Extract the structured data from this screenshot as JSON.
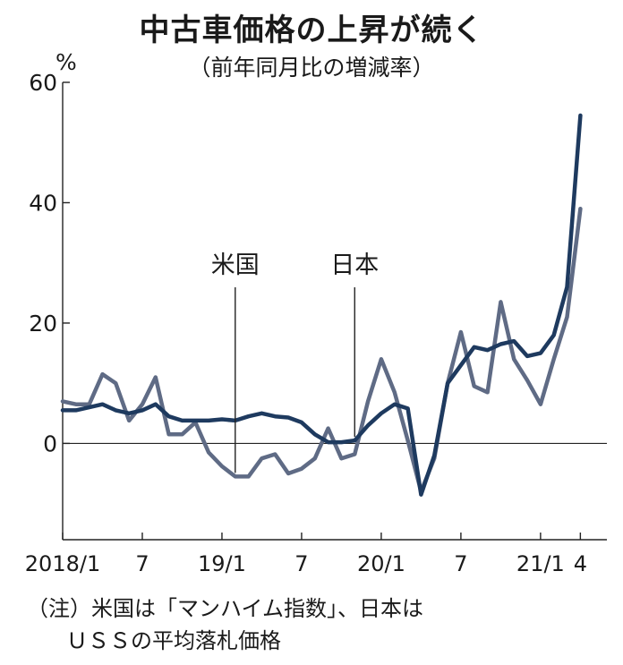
{
  "title": "中古車価格の上昇が続く",
  "subtitle": "（前年同月比の増減率）",
  "note_line1": "（注）米国は「マンハイム指数」、日本は",
  "note_line2": "ＵＳＳの平均落札価格",
  "chart_data": {
    "type": "line",
    "ylabel": "%",
    "ylim": [
      -16,
      60
    ],
    "yticks": [
      0,
      20,
      40,
      60
    ],
    "x_tick_labels": [
      {
        "label": "2018/1",
        "index": 0
      },
      {
        "label": "7",
        "index": 6
      },
      {
        "label": "19/1",
        "index": 12
      },
      {
        "label": "7",
        "index": 18
      },
      {
        "label": "20/1",
        "index": 24
      },
      {
        "label": "7",
        "index": 30
      },
      {
        "label": "21/1",
        "index": 36
      },
      {
        "label": "4",
        "index": 39
      }
    ],
    "series": [
      {
        "name": "米国",
        "color": "#5f6b85",
        "label_index": 13,
        "values": [
          7,
          6.5,
          6.5,
          11.5,
          10,
          3.8,
          6.5,
          11,
          1.5,
          1.5,
          3.5,
          -1.5,
          -3.8,
          -5.5,
          -5.5,
          -2.5,
          -1.8,
          -5,
          -4.2,
          -2.5,
          2.5,
          -2.5,
          -1.8,
          7,
          14,
          8.5,
          0.5,
          -8,
          -2.5,
          10,
          18.5,
          9.5,
          8.5,
          23.5,
          14,
          10.5,
          6.5,
          14,
          21,
          39
        ]
      },
      {
        "name": "日本",
        "color": "#1e3a5f",
        "label_index": 22,
        "values": [
          5.5,
          5.5,
          6,
          6.5,
          5.5,
          5,
          5.5,
          6.5,
          4.5,
          3.8,
          3.8,
          3.8,
          4,
          3.8,
          4.5,
          5,
          4.5,
          4.3,
          3.5,
          1.5,
          0.2,
          0.2,
          0.5,
          3,
          5,
          6.5,
          5.8,
          -8.5,
          -2,
          10,
          13,
          16,
          15.5,
          16.5,
          17,
          14.5,
          15,
          18,
          26,
          54.5
        ]
      }
    ]
  }
}
